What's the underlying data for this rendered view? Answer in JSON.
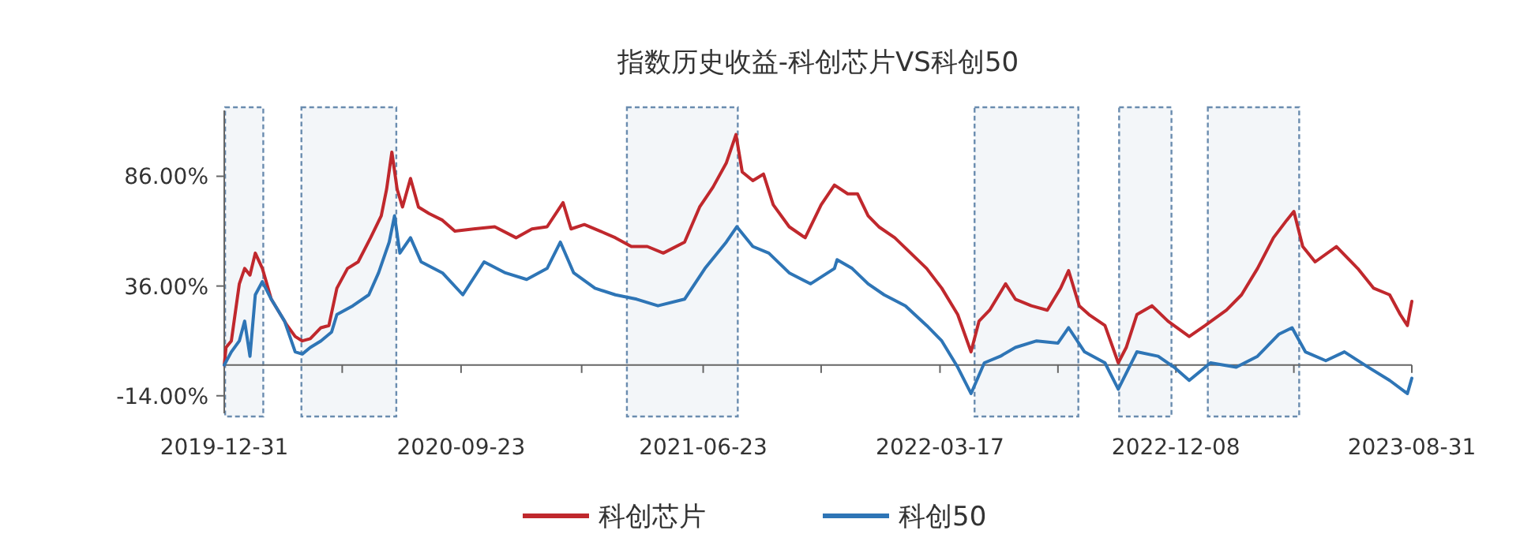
{
  "chart_data": {
    "type": "line",
    "title": "指数历史收益-科创芯片VS科创50",
    "xlim": [
      "2019-12-31",
      "2023-08-31"
    ],
    "xticks": [
      {
        "value": "2019-12-31",
        "label": "2019-12-31"
      },
      {
        "value": "2020-05-12",
        "label": null
      },
      {
        "value": "2020-09-23",
        "label": "2020-09-23"
      },
      {
        "value": "2021-02-06",
        "label": null
      },
      {
        "value": "2021-06-23",
        "label": "2021-06-23"
      },
      {
        "value": "2021-11-03",
        "label": null
      },
      {
        "value": "2022-03-17",
        "label": "2022-03-17"
      },
      {
        "value": "2022-07-28",
        "label": null
      },
      {
        "value": "2022-12-08",
        "label": "2022-12-08"
      },
      {
        "value": "2023-04-20",
        "label": null
      },
      {
        "value": "2023-08-31",
        "label": "2023-08-31"
      }
    ],
    "ylim": [
      -22,
      116
    ],
    "yticks": [
      {
        "value": -14,
        "label": "-14.00%"
      },
      {
        "value": 36,
        "label": "36.00%"
      },
      {
        "value": 86,
        "label": "86.00%"
      }
    ],
    "grid": false,
    "legend": "bottom",
    "marker": "none",
    "line_style": "solid",
    "bands": [
      {
        "axis": "x",
        "from": "2020-01-01",
        "to": "2020-02-13",
        "color": "#6a8caf"
      },
      {
        "axis": "x",
        "from": "2020-03-27",
        "to": "2020-07-12",
        "color": "#6a8caf"
      },
      {
        "axis": "x",
        "from": "2021-03-29",
        "to": "2021-08-01",
        "color": "#6a8caf"
      },
      {
        "axis": "x",
        "from": "2022-04-25",
        "to": "2022-08-20",
        "color": "#6a8caf"
      },
      {
        "axis": "x",
        "from": "2022-10-05",
        "to": "2022-12-03",
        "color": "#6a8caf"
      },
      {
        "axis": "x",
        "from": "2023-01-13",
        "to": "2023-04-26",
        "color": "#6a8caf"
      }
    ],
    "series": [
      {
        "name": "科创芯片",
        "color": "#c0282d",
        "x": [
          "2019-12-31",
          "2020-01-02",
          "2020-01-08",
          "2020-01-17",
          "2020-01-23",
          "2020-01-29",
          "2020-02-04",
          "2020-02-12",
          "2020-02-22",
          "2020-03-11",
          "2020-03-20",
          "2020-03-28",
          "2020-04-06",
          "2020-04-18",
          "2020-04-27",
          "2020-05-06",
          "2020-05-18",
          "2020-05-30",
          "2020-06-13",
          "2020-06-25",
          "2020-07-01",
          "2020-07-07",
          "2020-07-13",
          "2020-07-19",
          "2020-07-28",
          "2020-08-06",
          "2020-08-18",
          "2020-09-02",
          "2020-09-16",
          "2020-10-07",
          "2020-10-31",
          "2020-11-24",
          "2020-12-12",
          "2020-12-29",
          "2021-01-16",
          "2021-01-25",
          "2021-02-09",
          "2021-02-27",
          "2021-03-16",
          "2021-04-03",
          "2021-04-21",
          "2021-05-09",
          "2021-06-02",
          "2021-06-19",
          "2021-07-04",
          "2021-07-19",
          "2021-07-30",
          "2021-08-06",
          "2021-08-18",
          "2021-08-30",
          "2021-09-10",
          "2021-09-28",
          "2021-10-16",
          "2021-11-03",
          "2021-11-18",
          "2021-12-03",
          "2021-12-14",
          "2021-12-26",
          "2022-01-07",
          "2022-01-25",
          "2022-02-12",
          "2022-03-02",
          "2022-03-19",
          "2022-04-06",
          "2022-04-21",
          "2022-04-30",
          "2022-05-12",
          "2022-05-30",
          "2022-06-10",
          "2022-06-28",
          "2022-07-16",
          "2022-07-31",
          "2022-08-09",
          "2022-08-21",
          "2022-09-01",
          "2022-09-19",
          "2022-10-04",
          "2022-10-13",
          "2022-10-25",
          "2022-11-11",
          "2022-11-29",
          "2022-12-23",
          "2023-01-10",
          "2023-02-03",
          "2023-02-20",
          "2023-03-10",
          "2023-03-28",
          "2023-04-12",
          "2023-04-20",
          "2023-04-30",
          "2023-05-14",
          "2023-06-07",
          "2023-07-01",
          "2023-07-19",
          "2023-08-06",
          "2023-08-18",
          "2023-08-26",
          "2023-08-31"
        ],
        "values": [
          0,
          8,
          11,
          37,
          44,
          41,
          51,
          44,
          30,
          18,
          13,
          11,
          12,
          17,
          18,
          35,
          44,
          47,
          58,
          68,
          80,
          97,
          80,
          72,
          85,
          72,
          69,
          66,
          61,
          62,
          63,
          58,
          62,
          63,
          74,
          62,
          64,
          61,
          58,
          54,
          54,
          51,
          56,
          72,
          81,
          92,
          105,
          88,
          84,
          87,
          73,
          63,
          58,
          73,
          82,
          78,
          78,
          68,
          63,
          58,
          51,
          44,
          35,
          23,
          6,
          20,
          25,
          37,
          30,
          27,
          25,
          35,
          43,
          27,
          23,
          18,
          1,
          8,
          23,
          27,
          20,
          13,
          18,
          25,
          32,
          44,
          58,
          66,
          70,
          54,
          47,
          54,
          44,
          35,
          32,
          23,
          18,
          29
        ]
      },
      {
        "name": "科创50",
        "color": "#2e75b6",
        "x": [
          "2019-12-31",
          "2020-01-08",
          "2020-01-17",
          "2020-01-23",
          "2020-01-29",
          "2020-02-04",
          "2020-02-12",
          "2020-02-22",
          "2020-03-08",
          "2020-03-20",
          "2020-03-28",
          "2020-04-06",
          "2020-04-18",
          "2020-04-30",
          "2020-05-06",
          "2020-05-24",
          "2020-06-11",
          "2020-06-22",
          "2020-07-04",
          "2020-07-10",
          "2020-07-16",
          "2020-07-28",
          "2020-08-09",
          "2020-09-02",
          "2020-09-25",
          "2020-10-19",
          "2020-11-12",
          "2020-12-06",
          "2020-12-29",
          "2021-01-13",
          "2021-01-28",
          "2021-02-21",
          "2021-03-16",
          "2021-04-09",
          "2021-05-03",
          "2021-06-02",
          "2021-06-25",
          "2021-07-19",
          "2021-07-31",
          "2021-08-18",
          "2021-09-05",
          "2021-09-28",
          "2021-10-22",
          "2021-11-18",
          "2021-11-21",
          "2021-12-08",
          "2021-12-26",
          "2022-01-13",
          "2022-02-06",
          "2022-03-02",
          "2022-03-19",
          "2022-04-06",
          "2022-04-21",
          "2022-05-06",
          "2022-05-24",
          "2022-06-10",
          "2022-07-04",
          "2022-07-28",
          "2022-08-09",
          "2022-08-27",
          "2022-09-19",
          "2022-10-04",
          "2022-10-25",
          "2022-11-18",
          "2022-12-06",
          "2022-12-23",
          "2023-01-16",
          "2023-02-14",
          "2023-03-10",
          "2023-04-03",
          "2023-04-18",
          "2023-05-03",
          "2023-05-26",
          "2023-06-16",
          "2023-07-13",
          "2023-08-06",
          "2023-08-26",
          "2023-08-31"
        ],
        "values": [
          0,
          6,
          11,
          20,
          4,
          32,
          38,
          30,
          20,
          6,
          5,
          8,
          11,
          15,
          23,
          27,
          32,
          42,
          56,
          68,
          51,
          58,
          47,
          42,
          32,
          47,
          42,
          39,
          44,
          56,
          42,
          35,
          32,
          30,
          27,
          30,
          44,
          56,
          63,
          54,
          51,
          42,
          37,
          44,
          48,
          44,
          37,
          32,
          27,
          18,
          11,
          -1,
          -13,
          1,
          4,
          8,
          11,
          10,
          17,
          6,
          1,
          -11,
          6,
          4,
          -1,
          -7,
          1,
          -1,
          4,
          14,
          17,
          6,
          2,
          6,
          -1,
          -7,
          -13,
          -6
        ]
      }
    ]
  }
}
